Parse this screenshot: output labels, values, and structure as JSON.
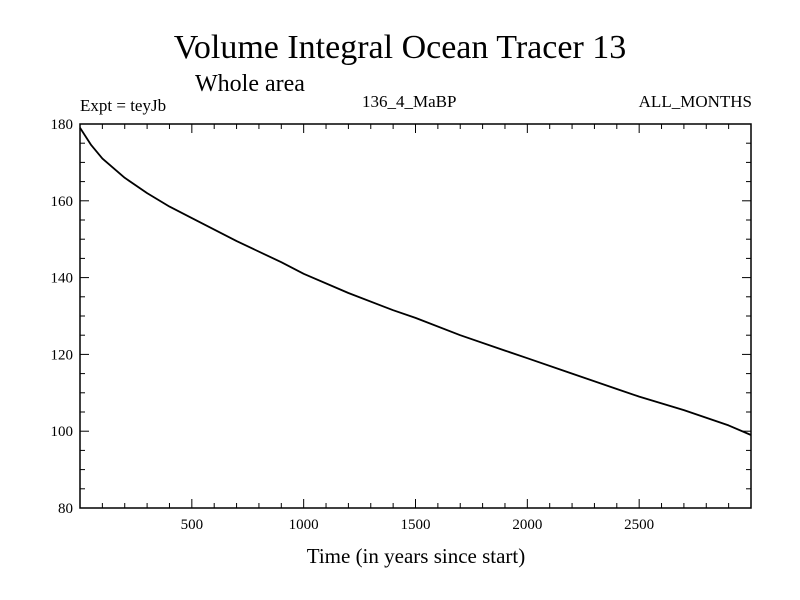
{
  "chart_data": {
    "type": "line",
    "title": "Volume Integral Ocean Tracer 13",
    "subtitle": "Whole area",
    "annotations": {
      "experiment": "Expt = teyJb",
      "period": "136_4_MaBP",
      "months": "ALL_MONTHS"
    },
    "xlabel": "Time (in years since start)",
    "ylabel": "",
    "xlim": [
      0,
      3000
    ],
    "ylim": [
      80,
      180
    ],
    "xticks": [
      500,
      1000,
      1500,
      2000,
      2500
    ],
    "yticks": [
      80,
      100,
      120,
      140,
      160,
      180
    ],
    "series": [
      {
        "name": "Tracer 13",
        "color": "#000000",
        "x": [
          0,
          50,
          100,
          200,
          300,
          400,
          500,
          700,
          900,
          1000,
          1200,
          1400,
          1500,
          1700,
          1900,
          2000,
          2200,
          2400,
          2500,
          2700,
          2900,
          3000
        ],
        "y": [
          179,
          174.5,
          171,
          166,
          162,
          158.5,
          155.5,
          149.5,
          144,
          141,
          136,
          131.5,
          129.5,
          125,
          121,
          119,
          115,
          111,
          109,
          105.5,
          101.5,
          99
        ]
      }
    ]
  }
}
